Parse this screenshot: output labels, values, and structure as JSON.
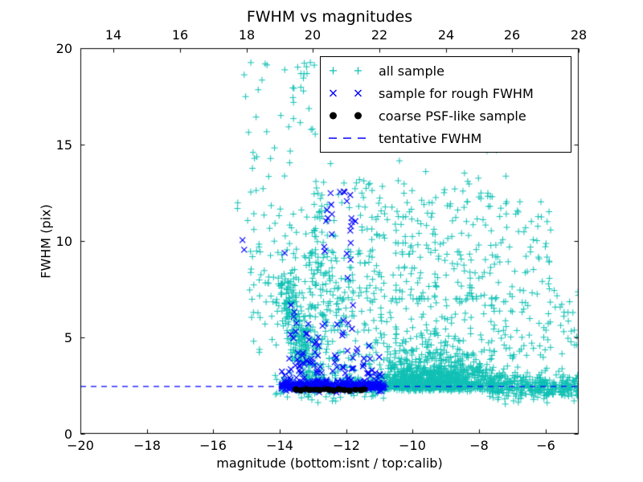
{
  "title": "FWHM vs magnitudes",
  "axes": {
    "xlabel": "magnitude (bottom:isnt / top:calib)",
    "ylabel": "FWHM (pix)",
    "bottom_ticks": [
      "−20",
      "−18",
      "−16",
      "−14",
      "−12",
      "−10",
      "−8",
      "−6"
    ],
    "top_ticks": [
      "14",
      "16",
      "18",
      "20",
      "22",
      "24",
      "26",
      "28"
    ],
    "left_ticks": [
      "0",
      "5",
      "10",
      "15",
      "20"
    ]
  },
  "chart_data": {
    "type": "scatter",
    "title": "FWHM vs magnitudes",
    "xlabel": "magnitude (bottom:isnt / top:calib)",
    "ylabel": "FWHM (pix)",
    "xlim": [
      -20,
      -5
    ],
    "ylim": [
      0,
      20
    ],
    "top_xlim": [
      13,
      28
    ],
    "top_axis_offset": 33,
    "x_ticks_bottom": [
      -20,
      -18,
      -16,
      -14,
      -12,
      -10,
      -8,
      -6
    ],
    "x_ticks_top": [
      14,
      16,
      18,
      20,
      22,
      24,
      26,
      28
    ],
    "y_ticks": [
      0,
      5,
      10,
      15,
      20
    ],
    "grid": false,
    "legend_position": "upper right",
    "tentative_fwhm": 2.45,
    "seed": 7,
    "background": "#ffffff",
    "frame_color": "#000000",
    "series": [
      {
        "name": "all sample",
        "marker": "+",
        "color": "#10C0B4",
        "n_points_approx": 2700,
        "clusters": [
          {
            "type": "uniform",
            "n": 60,
            "x": [
              -15.3,
              -12.2
            ],
            "y": [
              11.5,
              19.3
            ]
          },
          {
            "type": "uniform",
            "n": 110,
            "x": [
              -15.05,
              -12.5
            ],
            "y": [
              4.2,
              11.5
            ]
          },
          {
            "type": "streak",
            "n": 260,
            "x0": -13.85,
            "y0": 8.0,
            "x1": -13.05,
            "y1": 2.6,
            "xs": 0.18,
            "ys": 0.55
          },
          {
            "type": "uniform",
            "n": 240,
            "x": [
              -13.25,
              -10.9
            ],
            "y": [
              2.6,
              9.2
            ]
          },
          {
            "type": "uniform",
            "n": 70,
            "x": [
              -13.1,
              -10.9
            ],
            "y": [
              9.2,
              13.2
            ]
          },
          {
            "type": "gaussxy",
            "n": 1150,
            "cx": -9.4,
            "sx": 1.05,
            "xclip": [
              -10.88,
              -5.0
            ],
            "ybase": 2.15,
            "ymu": -0.35,
            "ysig": 0.85,
            "yscale": 1.0,
            "yclip": [
              1.6,
              7.0
            ]
          },
          {
            "type": "uniform",
            "n": 150,
            "x": [
              -10.88,
              -8.0
            ],
            "y": [
              6.6,
              13.2
            ]
          },
          {
            "type": "uniform",
            "n": 80,
            "x": [
              -8.0,
              -5.8
            ],
            "y": [
              6.6,
              12.5
            ]
          },
          {
            "type": "uniform",
            "n": 45,
            "x": [
              -10.6,
              -5.5
            ],
            "y": [
              13.2,
              19.3
            ]
          },
          {
            "type": "gaussy",
            "n": 340,
            "x": [
              -7.75,
              -4.95
            ],
            "ymean": 2.45,
            "ysd": 0.33,
            "yclip": [
              1.5,
              3.9
            ]
          },
          {
            "type": "uniform",
            "n": 75,
            "x": [
              -7.75,
              -5.0
            ],
            "y": [
              3.9,
              7.6
            ]
          },
          {
            "type": "gaussy",
            "n": 140,
            "x": [
              -14.15,
              -10.85
            ],
            "ymean": 2.5,
            "ysd": 0.32,
            "yclip": [
              1.7,
              3.5
            ]
          }
        ]
      },
      {
        "name": "sample for rough FWHM",
        "marker": "x",
        "color": "#0000FF",
        "n_points_approx": 460,
        "clusters": [
          {
            "type": "gaussy",
            "n": 330,
            "x": [
              -13.95,
              -10.85
            ],
            "ymean": 2.48,
            "ysd": 0.13,
            "yclip": [
              2.05,
              3.0
            ]
          },
          {
            "type": "clumps",
            "n": 46,
            "x": [
              -13.9,
              -10.92
            ],
            "ybase": 2.8,
            "yscale": 0.85,
            "ysig": 0.95,
            "ymax": 12.5,
            "maxk": 3
          },
          {
            "type": "uniform",
            "n": 14,
            "x": [
              -11.98,
              -11.72
            ],
            "y": [
              3.2,
              12.4
            ]
          },
          {
            "type": "uniform",
            "n": 9,
            "x": [
              -12.68,
              -12.42
            ],
            "y": [
              9.2,
              12.5
            ]
          },
          {
            "type": "points",
            "pts": [
              [
                -15.12,
                10.05
              ],
              [
                -15.07,
                9.55
              ]
            ]
          }
        ]
      },
      {
        "name": "coarse PSF-like sample",
        "marker": "circle",
        "color": "#000000",
        "n_points_approx": 15,
        "clusters": [
          {
            "type": "points",
            "pts": [
              [
                -13.52,
                2.3
              ],
              [
                -13.37,
                2.26
              ],
              [
                -13.24,
                2.33
              ],
              [
                -13.1,
                2.28
              ],
              [
                -12.95,
                2.31
              ],
              [
                -12.8,
                2.27
              ],
              [
                -12.66,
                2.34
              ],
              [
                -12.52,
                2.29
              ],
              [
                -12.38,
                2.25
              ],
              [
                -12.22,
                2.31
              ],
              [
                -12.06,
                2.28
              ],
              [
                -11.9,
                2.24
              ],
              [
                -11.72,
                2.3
              ],
              [
                -11.55,
                2.27
              ],
              [
                -11.45,
                2.33
              ]
            ]
          }
        ]
      },
      {
        "name": "tentative FWHM",
        "marker": "dashed-line",
        "color": "#0000FF",
        "line_y": 2.45
      }
    ]
  }
}
